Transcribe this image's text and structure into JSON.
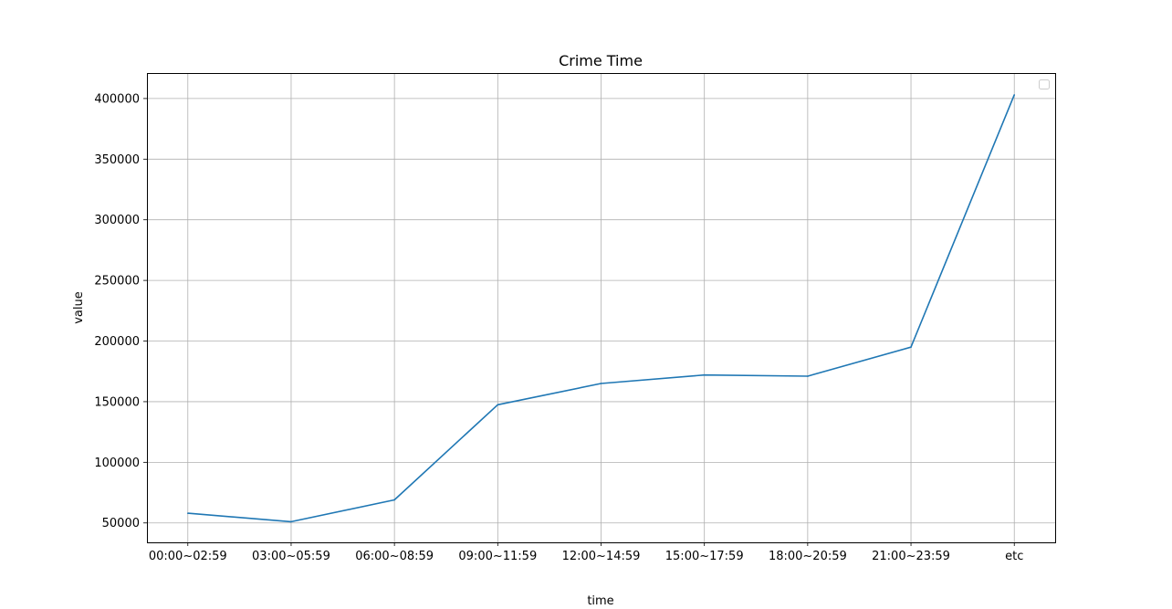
{
  "chart_data": {
    "type": "line",
    "title": "Crime Time",
    "xlabel": "time",
    "ylabel": "value",
    "categories": [
      "00:00~02:59",
      "03:00~05:59",
      "06:00~08:59",
      "09:00~11:59",
      "12:00~14:59",
      "15:00~17:59",
      "18:00~20:59",
      "21:00~23:59",
      "etc"
    ],
    "series": [
      {
        "values": [
          58000,
          51000,
          69000,
          147500,
          165000,
          172000,
          171000,
          195000,
          403000
        ],
        "color": "#1f77b4"
      }
    ],
    "ylim": [
      34000,
      421000
    ],
    "yticks": [
      50000,
      100000,
      150000,
      200000,
      250000,
      300000,
      350000,
      400000
    ],
    "grid": true,
    "legend": {
      "placement": "top-right",
      "entries": []
    }
  }
}
